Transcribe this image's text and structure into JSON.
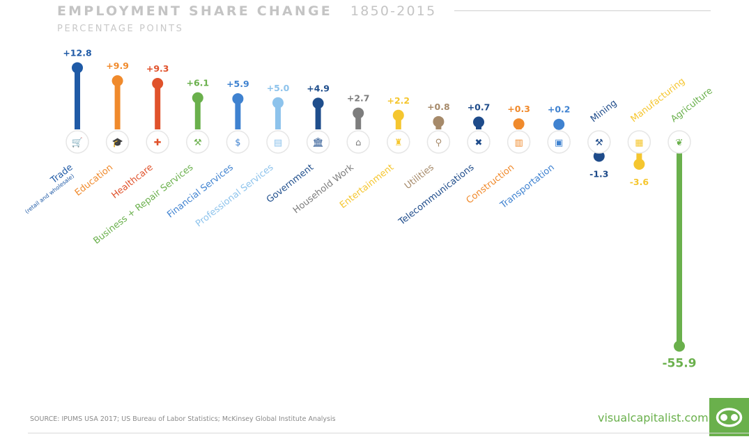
{
  "header": {
    "title": "EMPLOYMENT SHARE CHANGE",
    "years": "1850-2015",
    "subtitle": "PERCENTAGE POINTS"
  },
  "footer": {
    "source": "SOURCE: IPUMS USA 2017; US Bureau of Labor Statistics; McKinsey Global Institute Analysis",
    "brand": "visualcapitalist.com",
    "logo_icon": "visual-capitalist-logo-icon"
  },
  "chart_data": {
    "type": "bar",
    "title": "EMPLOYMENT SHARE CHANGE",
    "subtitle": "PERCENTAGE POINTS",
    "categories": [
      "Trade",
      "Education",
      "Healthcare",
      "Business + Repair Services",
      "Financial Services",
      "Professional Services",
      "Government",
      "Household Work",
      "Entertainment",
      "Utilities",
      "Telecommunications",
      "Construction",
      "Transportation",
      "Mining",
      "Manufacturing",
      "Agriculture"
    ],
    "values": [
      12.8,
      9.9,
      9.3,
      6.1,
      5.9,
      5.0,
      4.9,
      2.7,
      2.2,
      0.8,
      0.7,
      0.3,
      0.2,
      -1.3,
      -3.6,
      -55.9
    ],
    "value_labels": [
      "+12.8",
      "+9.9",
      "+9.3",
      "+6.1",
      "+5.9",
      "+5.0",
      "+4.9",
      "+2.7",
      "+2.2",
      "+0.8",
      "+0.7",
      "+0.3",
      "+0.2",
      "-1.3",
      "-3.6",
      "-55.9"
    ],
    "sublabels": [
      "(retail and wholesale)",
      "",
      "",
      "",
      "",
      "",
      "",
      "",
      "",
      "",
      "",
      "",
      "",
      "",
      "",
      ""
    ],
    "colors": [
      "#1f5aa6",
      "#f08a2c",
      "#e0522b",
      "#6ab04c",
      "#3f82d0",
      "#8dc3ec",
      "#1f4e8c",
      "#7d7d7d",
      "#f5c62f",
      "#a68a6a",
      "#1e4b8a",
      "#f08a2c",
      "#3f82d0",
      "#1e4b8a",
      "#f5c62f",
      "#6ab04c"
    ],
    "icons": [
      "shopping-cart-icon",
      "graduation-cap-icon",
      "medical-cross-icon",
      "tools-icon",
      "money-bag-icon",
      "briefcase-icon",
      "bank-icon",
      "house-icon",
      "theater-stage-icon",
      "water-faucet-icon",
      "satellite-icon",
      "building-crane-icon",
      "bus-icon",
      "pickaxe-icon",
      "factory-icon",
      "leaf-icon"
    ],
    "baseline": 0,
    "legend": "none",
    "grid": false
  }
}
